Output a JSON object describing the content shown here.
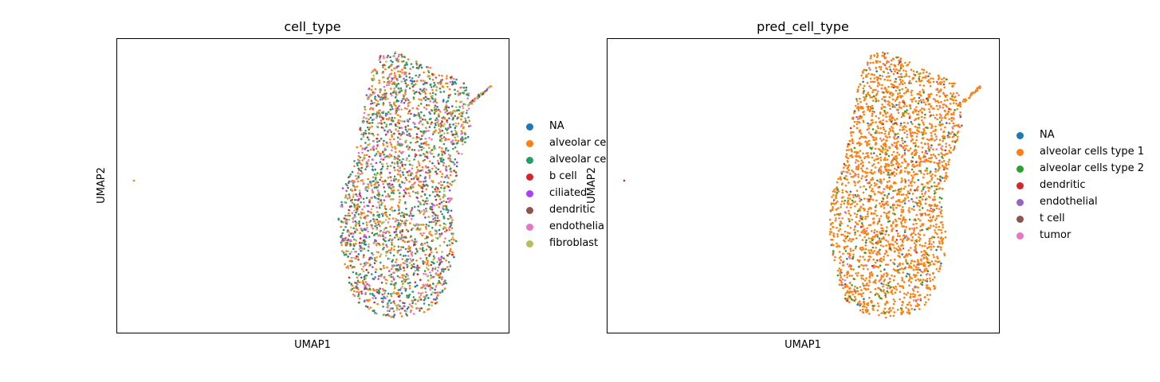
{
  "chart_data": [
    {
      "type": "scatter",
      "title": "cell_type",
      "xlabel": "UMAP1",
      "ylabel": "UMAP2",
      "grid": false,
      "legend_position": "right",
      "legend": [
        {
          "label": "NA",
          "color": "#1f77b4"
        },
        {
          "label": "alveolar ce",
          "color": "#ff7f0e"
        },
        {
          "label": "alveolar ce",
          "color": "#279e68"
        },
        {
          "label": "b cell",
          "color": "#d62728"
        },
        {
          "label": "ciliated",
          "color": "#aa40fc"
        },
        {
          "label": "dendritic",
          "color": "#8c564b"
        },
        {
          "label": "endothelia",
          "color": "#e377c2"
        },
        {
          "label": "fibroblast",
          "color": "#b5bd61"
        }
      ],
      "category_weights": [
        8,
        32,
        28,
        4,
        4,
        6,
        12,
        10
      ]
    },
    {
      "type": "scatter",
      "title": "pred_cell_type",
      "xlabel": "UMAP1",
      "ylabel": "UMAP2",
      "grid": false,
      "legend_position": "right",
      "legend": [
        {
          "label": "NA",
          "color": "#1f77b4"
        },
        {
          "label": "alveolar cells type 1",
          "color": "#ff7f0e"
        },
        {
          "label": "alveolar cells type 2",
          "color": "#2ca02c"
        },
        {
          "label": "dendritic",
          "color": "#d62728"
        },
        {
          "label": "endothelial",
          "color": "#9467bd"
        },
        {
          "label": "t cell",
          "color": "#8c564b"
        },
        {
          "label": "tumor",
          "color": "#e377c2"
        }
      ],
      "category_weights": [
        4,
        86,
        5,
        1,
        1,
        1,
        2
      ]
    }
  ]
}
